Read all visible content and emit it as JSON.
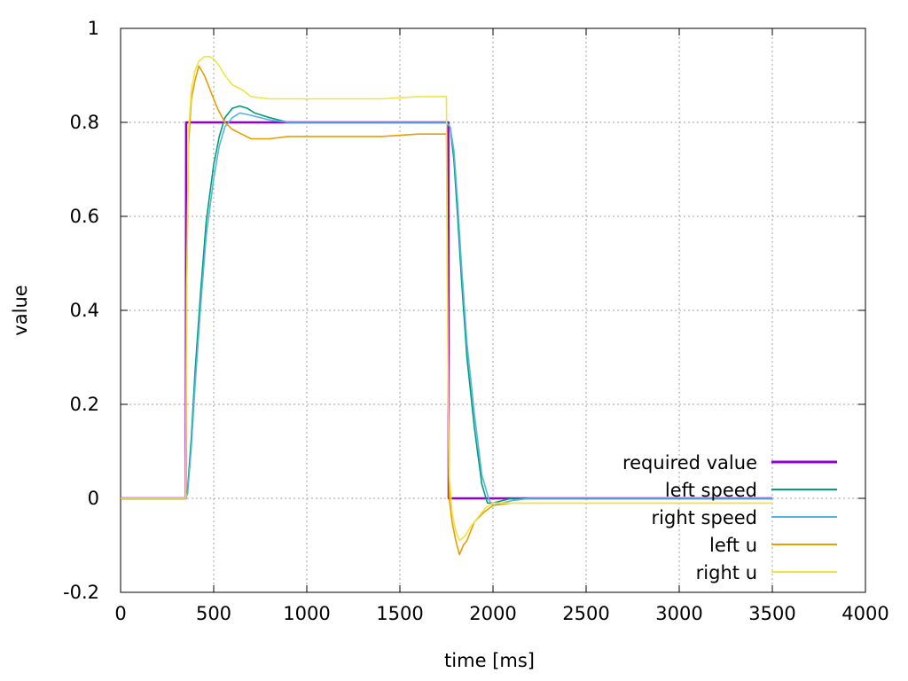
{
  "chart_data": {
    "type": "line",
    "title": "",
    "xlabel": "time [ms]",
    "ylabel": "value",
    "xlim": [
      0,
      4000
    ],
    "ylim": [
      -0.2,
      1
    ],
    "xticks": [
      "0",
      "500",
      "1000",
      "1500",
      "2000",
      "2500",
      "3000",
      "3500",
      "4000"
    ],
    "yticks": [
      "-0.2",
      "0",
      "0.2",
      "0.4",
      "0.6",
      "0.8",
      "1"
    ],
    "grid": true,
    "legend_position": "bottom-right",
    "series": [
      {
        "name": "required value",
        "color": "#9400d3",
        "x": [
          0,
          350,
          352,
          1760,
          1762,
          3500
        ],
        "y": [
          0,
          0,
          0.8,
          0.8,
          0,
          0
        ]
      },
      {
        "name": "left speed",
        "color": "#009e73",
        "x": [
          0,
          350,
          360,
          380,
          400,
          430,
          460,
          500,
          530,
          560,
          600,
          640,
          680,
          720,
          800,
          900,
          1000,
          1200,
          1400,
          1600,
          1750,
          1770,
          1790,
          1810,
          1830,
          1860,
          1900,
          1940,
          1970,
          2000,
          2050,
          2100,
          2200,
          2500,
          3500
        ],
        "y": [
          0,
          0,
          0.02,
          0.13,
          0.27,
          0.44,
          0.59,
          0.71,
          0.77,
          0.81,
          0.83,
          0.835,
          0.83,
          0.82,
          0.81,
          0.8,
          0.8,
          0.8,
          0.8,
          0.8,
          0.8,
          0.79,
          0.72,
          0.6,
          0.47,
          0.3,
          0.15,
          0.03,
          -0.01,
          -0.01,
          -0.005,
          0,
          0,
          0,
          0
        ]
      },
      {
        "name": "right speed",
        "color": "#56b4e9",
        "x": [
          0,
          350,
          360,
          380,
          400,
          430,
          460,
          500,
          530,
          560,
          600,
          640,
          700,
          800,
          900,
          1000,
          1200,
          1400,
          1600,
          1750,
          1770,
          1790,
          1810,
          1830,
          1860,
          1900,
          1940,
          1980,
          2000,
          2050,
          2100,
          2200,
          2500,
          3500
        ],
        "y": [
          0,
          0,
          0.01,
          0.11,
          0.24,
          0.41,
          0.56,
          0.68,
          0.75,
          0.79,
          0.81,
          0.82,
          0.815,
          0.805,
          0.8,
          0.8,
          0.8,
          0.8,
          0.8,
          0.8,
          0.79,
          0.74,
          0.63,
          0.5,
          0.33,
          0.18,
          0.05,
          -0.005,
          -0.015,
          -0.01,
          -0.005,
          0,
          0,
          0
        ]
      },
      {
        "name": "left u",
        "color": "#e69f00",
        "x": [
          0,
          350,
          355,
          365,
          380,
          400,
          420,
          450,
          480,
          520,
          560,
          600,
          650,
          700,
          800,
          900,
          1000,
          1200,
          1400,
          1600,
          1750,
          1755,
          1760,
          1765,
          1780,
          1800,
          1820,
          1830,
          1840,
          1860,
          1900,
          1950,
          2000,
          2100,
          2200,
          2500,
          3500
        ],
        "y": [
          0,
          0,
          0.45,
          0.75,
          0.85,
          0.89,
          0.92,
          0.9,
          0.87,
          0.83,
          0.8,
          0.785,
          0.775,
          0.765,
          0.765,
          0.77,
          0.77,
          0.77,
          0.77,
          0.775,
          0.775,
          0.5,
          0.2,
          0.0,
          -0.05,
          -0.09,
          -0.12,
          -0.11,
          -0.1,
          -0.09,
          -0.05,
          -0.03,
          -0.015,
          -0.01,
          -0.01,
          -0.01,
          -0.01
        ]
      },
      {
        "name": "right u",
        "color": "#f0e442",
        "x": [
          0,
          350,
          355,
          365,
          380,
          400,
          420,
          450,
          480,
          500,
          530,
          560,
          600,
          650,
          700,
          800,
          1000,
          1200,
          1400,
          1600,
          1750,
          1755,
          1760,
          1765,
          1780,
          1800,
          1820,
          1850,
          1880,
          1920,
          1960,
          2000,
          2100,
          2200,
          2500,
          3500
        ],
        "y": [
          0,
          0,
          0.45,
          0.78,
          0.87,
          0.91,
          0.93,
          0.94,
          0.94,
          0.935,
          0.92,
          0.9,
          0.88,
          0.87,
          0.855,
          0.85,
          0.85,
          0.85,
          0.85,
          0.855,
          0.855,
          0.5,
          0.2,
          0.05,
          -0.03,
          -0.07,
          -0.09,
          -0.08,
          -0.06,
          -0.04,
          -0.02,
          -0.01,
          -0.01,
          -0.01,
          -0.01,
          -0.01
        ]
      }
    ]
  }
}
